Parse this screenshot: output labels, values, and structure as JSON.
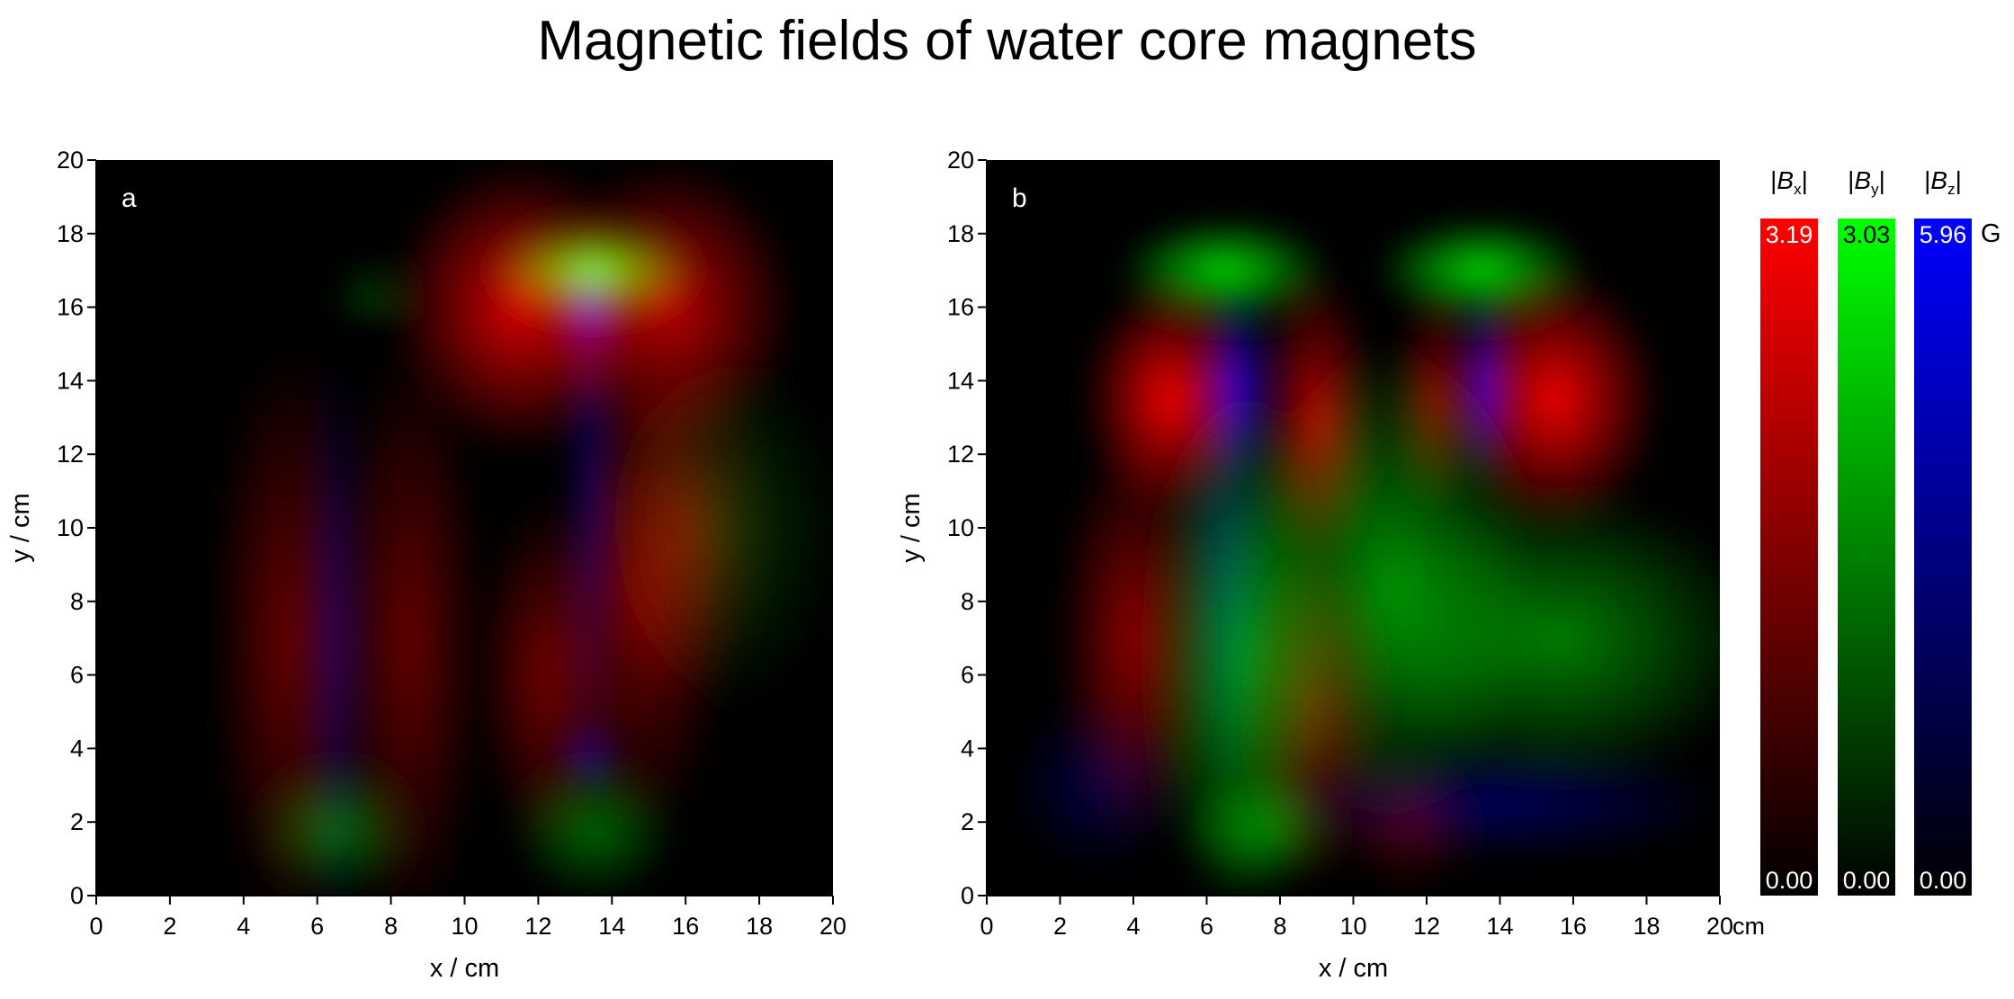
{
  "title": "Magnetic fields of water core magnets",
  "chart_data": [
    {
      "type": "heatmap",
      "panel_label": "a",
      "xlabel": "x / cm",
      "ylabel": "y / cm",
      "xlim": [
        0,
        20
      ],
      "ylim": [
        0,
        20
      ],
      "xticks": [
        0,
        2,
        4,
        6,
        8,
        10,
        12,
        14,
        16,
        18,
        20
      ],
      "yticks": [
        0,
        2,
        4,
        6,
        8,
        10,
        12,
        14,
        16,
        18,
        20
      ],
      "features": [
        {
          "component": "By",
          "x": 13.5,
          "y": 17.0,
          "rel": 0.95,
          "sx": 1.8,
          "sy": 0.9
        },
        {
          "component": "By",
          "x": 7.5,
          "y": 16.1,
          "rel": 0.35,
          "sx": 0.7,
          "sy": 0.25
        },
        {
          "component": "By",
          "x": 7.5,
          "y": 16.8,
          "rel": 0.25,
          "sx": 0.7,
          "sy": 0.2
        },
        {
          "component": "By",
          "x": 6.5,
          "y": 1.8,
          "rel": 0.4,
          "sx": 1.4,
          "sy": 1.2
        },
        {
          "component": "By",
          "x": 13.5,
          "y": 1.8,
          "rel": 0.4,
          "sx": 1.4,
          "sy": 1.2
        },
        {
          "component": "By",
          "x": 17.0,
          "y": 10.0,
          "rel": 0.2,
          "sx": 2.0,
          "sy": 3.0
        },
        {
          "component": "Bx",
          "x": 11.5,
          "y": 16.0,
          "rel": 0.85,
          "sx": 2.2,
          "sy": 2.5
        },
        {
          "component": "Bx",
          "x": 15.5,
          "y": 16.0,
          "rel": 0.75,
          "sx": 2.2,
          "sy": 2.5
        },
        {
          "component": "Bx",
          "x": 5.2,
          "y": 7.0,
          "rel": 0.4,
          "sx": 1.3,
          "sy": 5.0
        },
        {
          "component": "Bx",
          "x": 8.5,
          "y": 7.0,
          "rel": 0.4,
          "sx": 1.3,
          "sy": 5.0
        },
        {
          "component": "Bx",
          "x": 12.2,
          "y": 6.0,
          "rel": 0.45,
          "sx": 1.2,
          "sy": 3.0
        },
        {
          "component": "Bx",
          "x": 14.8,
          "y": 8.0,
          "rel": 0.45,
          "sx": 1.5,
          "sy": 4.0
        },
        {
          "component": "Bx",
          "x": 16.0,
          "y": 10.0,
          "rel": 0.35,
          "sx": 1.5,
          "sy": 3.0
        },
        {
          "component": "Bz",
          "x": 13.4,
          "y": 16.0,
          "rel": 0.7,
          "sx": 0.6,
          "sy": 0.9
        },
        {
          "component": "Bz",
          "x": 13.4,
          "y": 11.0,
          "rel": 0.35,
          "sx": 0.45,
          "sy": 5.0
        },
        {
          "component": "Bz",
          "x": 6.5,
          "y": 7.0,
          "rel": 0.35,
          "sx": 0.5,
          "sy": 5.0
        },
        {
          "component": "Bz",
          "x": 13.4,
          "y": 3.8,
          "rel": 0.5,
          "sx": 0.5,
          "sy": 0.6
        }
      ]
    },
    {
      "type": "heatmap",
      "panel_label": "b",
      "xlabel": "x / cm",
      "ylabel": "y / cm",
      "x_unit": "cm",
      "xlim": [
        0,
        20
      ],
      "ylim": [
        0,
        20
      ],
      "xticks": [
        0,
        2,
        4,
        6,
        8,
        10,
        12,
        14,
        16,
        18,
        20
      ],
      "yticks": [
        0,
        2,
        4,
        6,
        8,
        10,
        12,
        14,
        16,
        18,
        20
      ],
      "features": [
        {
          "component": "By",
          "x": 6.5,
          "y": 17.0,
          "rel": 0.85,
          "sx": 1.8,
          "sy": 0.9
        },
        {
          "component": "By",
          "x": 13.5,
          "y": 17.0,
          "rel": 0.85,
          "sx": 1.8,
          "sy": 0.9
        },
        {
          "component": "By",
          "x": 7.0,
          "y": 6.5,
          "rel": 0.6,
          "sx": 1.6,
          "sy": 4.5
        },
        {
          "component": "By",
          "x": 11.0,
          "y": 8.5,
          "rel": 0.55,
          "sx": 2.5,
          "sy": 4.0
        },
        {
          "component": "By",
          "x": 15.5,
          "y": 7.0,
          "rel": 0.5,
          "sx": 3.5,
          "sy": 2.5
        },
        {
          "component": "By",
          "x": 7.5,
          "y": 1.8,
          "rel": 0.45,
          "sx": 1.4,
          "sy": 1.0
        },
        {
          "component": "Bx",
          "x": 5.0,
          "y": 13.5,
          "rel": 0.95,
          "sx": 1.5,
          "sy": 2.0
        },
        {
          "component": "Bx",
          "x": 15.5,
          "y": 13.5,
          "rel": 0.95,
          "sx": 1.8,
          "sy": 2.2
        },
        {
          "component": "Bx",
          "x": 9.0,
          "y": 13.0,
          "rel": 0.7,
          "sx": 1.0,
          "sy": 2.5
        },
        {
          "component": "Bx",
          "x": 12.3,
          "y": 13.5,
          "rel": 0.55,
          "sx": 0.8,
          "sy": 1.8
        },
        {
          "component": "Bx",
          "x": 4.0,
          "y": 7.0,
          "rel": 0.55,
          "sx": 1.3,
          "sy": 3.5
        },
        {
          "component": "Bx",
          "x": 9.0,
          "y": 5.0,
          "rel": 0.4,
          "sx": 1.2,
          "sy": 3.0
        },
        {
          "component": "Bx",
          "x": 11.5,
          "y": 2.0,
          "rel": 0.3,
          "sx": 1.2,
          "sy": 1.2
        },
        {
          "component": "Bz",
          "x": 6.8,
          "y": 13.8,
          "rel": 0.8,
          "sx": 0.7,
          "sy": 1.6
        },
        {
          "component": "Bz",
          "x": 13.6,
          "y": 13.8,
          "rel": 0.8,
          "sx": 0.5,
          "sy": 1.6
        },
        {
          "component": "Bz",
          "x": 6.5,
          "y": 9.0,
          "rel": 0.3,
          "sx": 0.8,
          "sy": 4.0
        },
        {
          "component": "Bz",
          "x": 14.0,
          "y": 2.5,
          "rel": 0.35,
          "sx": 4.0,
          "sy": 1.0
        },
        {
          "component": "Bz",
          "x": 3.0,
          "y": 3.0,
          "rel": 0.25,
          "sx": 1.5,
          "sy": 1.5
        }
      ]
    }
  ],
  "colorbars": {
    "unit": "G",
    "items": [
      {
        "label_prefix": "|B",
        "label_sub": "x",
        "label_suffix": "|",
        "component": "Bx",
        "max": "3.19",
        "min": "0.00",
        "color": "#ff0000"
      },
      {
        "label_prefix": "|B",
        "label_sub": "y",
        "label_suffix": "|",
        "component": "By",
        "max": "3.03",
        "min": "0.00",
        "color": "#00ff00"
      },
      {
        "label_prefix": "|B",
        "label_sub": "z",
        "label_suffix": "|",
        "component": "Bz",
        "max": "5.96",
        "min": "0.00",
        "color": "#0000ff"
      }
    ]
  }
}
